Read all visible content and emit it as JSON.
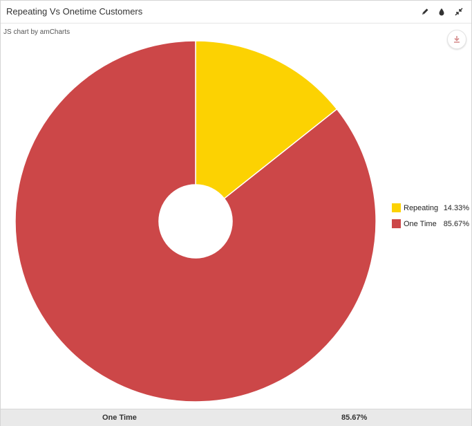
{
  "header": {
    "title": "Repeating Vs Onetime Customers",
    "icons": [
      "pencil-icon",
      "drop-icon",
      "collapse-icon"
    ]
  },
  "credit": "JS chart by amCharts",
  "export_icon": "download-icon",
  "chart_data": {
    "type": "pie",
    "title": "",
    "donut": true,
    "slices": [
      {
        "label": "Repeating",
        "value": 14.33,
        "display": "14.33%",
        "color": "#FCD202"
      },
      {
        "label": "One Time",
        "value": 85.67,
        "display": "85.67%",
        "color": "#CC4748"
      }
    ],
    "legend_position": "right"
  },
  "footer": {
    "label": "One Time",
    "value": "85.67%"
  }
}
